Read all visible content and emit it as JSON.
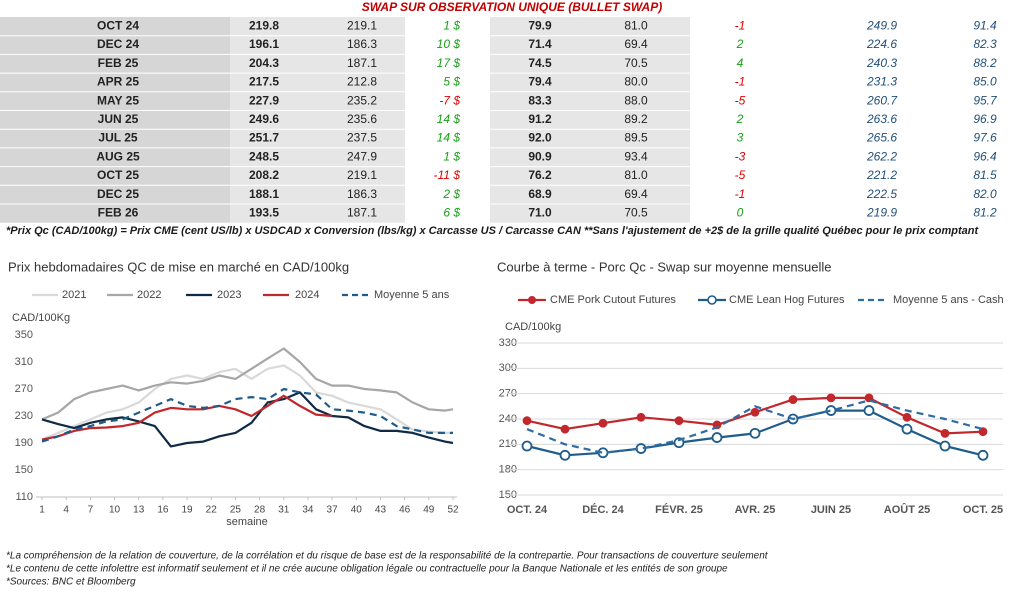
{
  "table": {
    "title": "SWAP SUR OBSERVATION UNIQUE (BULLET SWAP)",
    "rows": [
      [
        "OCT 24",
        "219.8",
        "219.1",
        "1 $",
        "79.9",
        "81.0",
        "-1",
        "249.9",
        "91.4"
      ],
      [
        "DEC 24",
        "196.1",
        "186.3",
        "10 $",
        "71.4",
        "69.4",
        "2",
        "224.6",
        "82.3"
      ],
      [
        "FEB 25",
        "204.3",
        "187.1",
        "17 $",
        "74.5",
        "70.5",
        "4",
        "240.3",
        "88.2"
      ],
      [
        "APR 25",
        "217.5",
        "212.8",
        "5 $",
        "79.4",
        "80.0",
        "-1",
        "231.3",
        "85.0"
      ],
      [
        "MAY 25",
        "227.9",
        "235.2",
        "-7 $",
        "83.3",
        "88.0",
        "-5",
        "260.7",
        "95.7"
      ],
      [
        "JUN 25",
        "249.6",
        "235.6",
        "14 $",
        "91.2",
        "89.2",
        "2",
        "263.6",
        "96.9"
      ],
      [
        "JUL 25",
        "251.7",
        "237.5",
        "14 $",
        "92.0",
        "89.5",
        "3",
        "265.6",
        "97.6"
      ],
      [
        "AUG 25",
        "248.5",
        "247.9",
        "1 $",
        "90.9",
        "93.4",
        "-3",
        "262.2",
        "96.4"
      ],
      [
        "OCT 25",
        "208.2",
        "219.1",
        "-11 $",
        "76.2",
        "81.0",
        "-5",
        "221.2",
        "81.5"
      ],
      [
        "DEC 25",
        "188.1",
        "186.3",
        "2 $",
        "68.9",
        "69.4",
        "-1",
        "222.5",
        "82.0"
      ],
      [
        "FEB 26",
        "193.5",
        "187.1",
        "6 $",
        "71.0",
        "70.5",
        "0",
        "219.9",
        "81.2"
      ]
    ],
    "footnote": "*Prix Qc (CAD/100kg) = Prix CME (cent US/lb) x USDCAD x Conversion (lbs/kg) x Carcasse US / Carcasse CAN **Sans l'ajustement de +2$ de la grille qualité Québec pour le prix comptant"
  },
  "chart_data": [
    {
      "type": "line",
      "title": "Prix hebdomadaires QC de mise en marché en CAD/100kg",
      "y_label": "CAD/100Kg",
      "x_label": "semaine",
      "x": [
        1,
        3,
        5,
        7,
        9,
        11,
        13,
        15,
        17,
        19,
        21,
        23,
        25,
        27,
        29,
        31,
        33,
        35,
        37,
        39,
        41,
        43,
        45,
        47,
        49,
        51,
        52
      ],
      "xlim": [
        1,
        52
      ],
      "xticks": [
        1,
        4,
        7,
        10,
        13,
        16,
        19,
        22,
        25,
        28,
        31,
        34,
        37,
        40,
        43,
        46,
        49,
        52
      ],
      "ylim": [
        110,
        350
      ],
      "yticks": [
        110,
        150,
        190,
        230,
        270,
        310,
        350
      ],
      "grid": false,
      "series": [
        {
          "name": "2021",
          "color": "#d9d9d9",
          "dash": false,
          "values": [
            195,
            205,
            215,
            225,
            235,
            240,
            250,
            270,
            285,
            290,
            285,
            295,
            300,
            285,
            300,
            305,
            290,
            265,
            260,
            250,
            245,
            240,
            225,
            210,
            207,
            205,
            205
          ]
        },
        {
          "name": "2022",
          "color": "#a6a6a6",
          "dash": false,
          "values": [
            225,
            235,
            255,
            265,
            270,
            275,
            268,
            275,
            280,
            278,
            282,
            290,
            285,
            300,
            315,
            330,
            310,
            285,
            275,
            275,
            270,
            268,
            265,
            250,
            240,
            238,
            240
          ]
        },
        {
          "name": "2023",
          "color": "#0f2a44",
          "dash": false,
          "values": [
            225,
            218,
            212,
            220,
            225,
            228,
            222,
            215,
            185,
            190,
            192,
            200,
            205,
            220,
            250,
            255,
            265,
            240,
            230,
            228,
            215,
            208,
            208,
            205,
            198,
            192,
            190
          ]
        },
        {
          "name": "2024",
          "color": "#c0282d",
          "dash": false,
          "values": [
            195,
            200,
            208,
            212,
            213,
            215,
            220,
            235,
            242,
            240,
            240,
            245,
            240,
            230,
            245,
            260,
            245,
            232,
            230,
            null,
            null,
            null,
            null,
            null,
            null,
            null,
            null
          ]
        },
        {
          "name": "Moyenne 5 ans",
          "color": "#1f5c8a",
          "dash": true,
          "values": [
            192,
            200,
            210,
            215,
            222,
            225,
            235,
            245,
            255,
            245,
            242,
            245,
            255,
            258,
            255,
            270,
            265,
            262,
            240,
            238,
            235,
            230,
            215,
            210,
            205,
            205,
            205
          ]
        }
      ]
    },
    {
      "type": "line",
      "title": "Courbe à terme - Porc Qc - Swap sur moyenne mensuelle",
      "y_label": "CAD/100kg",
      "categories": [
        "OCT. 24",
        null,
        "DÉC. 24",
        null,
        "FÉVR. 25",
        null,
        "AVR. 25",
        null,
        "JUIN 25",
        null,
        "AOÛT 25",
        null,
        "OCT. 25"
      ],
      "ylim": [
        150,
        330
      ],
      "yticks": [
        150,
        180,
        210,
        240,
        270,
        300,
        330
      ],
      "grid": true,
      "series": [
        {
          "name": "CME Pork Cutout Futures",
          "color": "#c0282d",
          "dash": false,
          "marker": "filled",
          "values": [
            238,
            228,
            235,
            242,
            238,
            233,
            248,
            263,
            265,
            265,
            242,
            223,
            225
          ]
        },
        {
          "name": "CME Lean Hog Futures",
          "color": "#1f5c8a",
          "dash": false,
          "marker": "open",
          "values": [
            208,
            197,
            200,
            205,
            212,
            218,
            223,
            240,
            250,
            250,
            228,
            208,
            197
          ]
        },
        {
          "name": "Moyenne 5 ans - Cash",
          "color": "#2e6da4",
          "dash": true,
          "marker": "none",
          "values": [
            228,
            210,
            200,
            205,
            215,
            230,
            255,
            240,
            250,
            262,
            250,
            240,
            228
          ]
        }
      ]
    }
  ],
  "notes": [
    "*La compréhension de la relation de couverture, de la corrélation et du risque de base est de la responsabilité de la contrepartie. Pour transactions de couverture seulement",
    "*Le contenu de cette infolettre est informatif seulement et il ne crée aucune obligation légale ou contractuelle pour la Banque Nationale et les entités de son groupe",
    "*Sources: BNC et Bloomberg"
  ]
}
